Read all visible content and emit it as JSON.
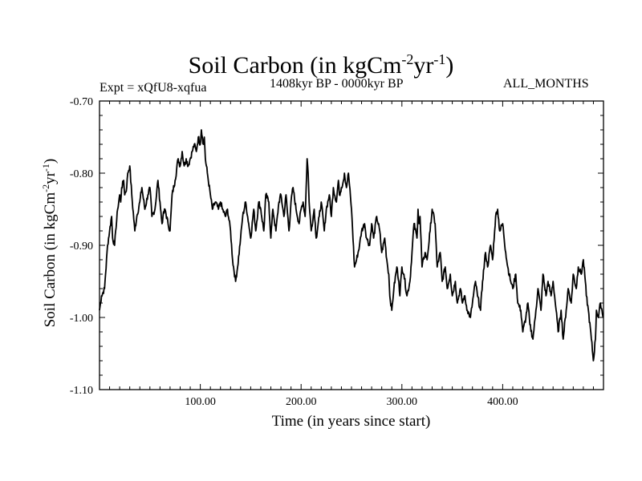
{
  "header": {
    "title_main": "Soil Carbon (in kgCm",
    "title_exp1": "-2",
    "title_mid": "yr",
    "title_exp2": "-1",
    "title_end": ")",
    "subtitle": "1408kyr BP - 0000kyr BP",
    "expt": "Expt = xQfU8-xqfua",
    "months": "ALL_MONTHS"
  },
  "chart_data": {
    "type": "line",
    "title": "Soil Carbon (in kgCm-2yr-1)",
    "xlabel": "Time (in years since start)",
    "ylabel": "Soil Carbon (in kgCm-2yr-1)",
    "xlim": [
      0,
      500
    ],
    "ylim": [
      -1.1,
      -0.7
    ],
    "xticks": [
      100,
      200,
      300,
      400
    ],
    "xtick_labels": [
      "100.00",
      "200.00",
      "300.00",
      "400.00"
    ],
    "yticks": [
      -1.1,
      -1.0,
      -0.9,
      -0.8,
      -0.7
    ],
    "ytick_labels": [
      "-1.10",
      "-1.00",
      "-0.90",
      "-0.80",
      "-0.70"
    ],
    "grid": false,
    "series": [
      {
        "name": "Soil Carbon",
        "x": [
          0,
          2,
          5,
          8,
          10,
          12,
          13,
          15,
          16,
          18,
          20,
          21,
          22,
          24,
          25,
          27,
          28,
          30,
          32,
          35,
          37,
          40,
          42,
          45,
          48,
          50,
          52,
          55,
          58,
          60,
          62,
          63,
          65,
          68,
          70,
          72,
          75,
          78,
          80,
          82,
          84,
          86,
          88,
          90,
          92,
          94,
          96,
          98,
          100,
          101,
          102,
          103,
          104,
          105,
          107,
          110,
          112,
          115,
          118,
          120,
          122,
          125,
          127,
          130,
          132,
          135,
          137,
          140,
          142,
          145,
          148,
          150,
          153,
          155,
          158,
          160,
          163,
          165,
          168,
          170,
          172,
          175,
          178,
          180,
          183,
          185,
          188,
          190,
          192,
          195,
          198,
          200,
          202,
          204,
          205,
          206,
          207,
          208,
          210,
          213,
          215,
          218,
          220,
          223,
          225,
          228,
          230,
          232,
          235,
          237,
          238,
          240,
          242,
          243,
          245,
          246,
          247,
          250,
          253,
          255,
          258,
          260,
          263,
          265,
          268,
          270,
          272,
          275,
          278,
          280,
          283,
          285,
          287,
          288,
          290,
          292,
          295,
          297,
          298,
          300,
          302,
          305,
          308,
          310,
          312,
          315,
          316,
          317,
          318,
          320,
          323,
          325,
          328,
          330,
          333,
          335,
          338,
          340,
          343,
          345,
          348,
          350,
          353,
          355,
          358,
          360,
          362,
          365,
          368,
          370,
          373,
          375,
          378,
          380,
          383,
          385,
          388,
          390,
          392,
          393,
          395,
          397,
          400,
          403,
          405,
          408,
          410,
          413,
          415,
          418,
          420,
          423,
          425,
          427,
          430,
          433,
          435,
          438,
          440,
          443,
          445,
          448,
          450,
          453,
          455,
          458,
          460,
          463,
          465,
          468,
          470,
          473,
          475,
          478,
          480,
          482,
          483,
          485,
          488,
          490,
          492,
          493,
          495,
          497,
          500
        ],
        "y": [
          -0.99,
          -0.97,
          -0.96,
          -0.9,
          -0.88,
          -0.86,
          -0.89,
          -0.9,
          -0.88,
          -0.85,
          -0.83,
          -0.84,
          -0.82,
          -0.81,
          -0.83,
          -0.82,
          -0.8,
          -0.79,
          -0.83,
          -0.88,
          -0.86,
          -0.84,
          -0.82,
          -0.85,
          -0.83,
          -0.82,
          -0.86,
          -0.85,
          -0.81,
          -0.84,
          -0.87,
          -0.86,
          -0.85,
          -0.87,
          -0.88,
          -0.83,
          -0.81,
          -0.78,
          -0.79,
          -0.77,
          -0.79,
          -0.78,
          -0.79,
          -0.78,
          -0.77,
          -0.76,
          -0.77,
          -0.75,
          -0.76,
          -0.74,
          -0.75,
          -0.76,
          -0.75,
          -0.78,
          -0.8,
          -0.83,
          -0.85,
          -0.84,
          -0.85,
          -0.84,
          -0.85,
          -0.86,
          -0.85,
          -0.88,
          -0.92,
          -0.95,
          -0.93,
          -0.89,
          -0.86,
          -0.84,
          -0.87,
          -0.89,
          -0.85,
          -0.88,
          -0.84,
          -0.85,
          -0.88,
          -0.83,
          -0.84,
          -0.89,
          -0.85,
          -0.88,
          -0.84,
          -0.83,
          -0.86,
          -0.83,
          -0.88,
          -0.84,
          -0.82,
          -0.85,
          -0.87,
          -0.85,
          -0.84,
          -0.86,
          -0.82,
          -0.78,
          -0.8,
          -0.84,
          -0.88,
          -0.85,
          -0.89,
          -0.86,
          -0.84,
          -0.88,
          -0.85,
          -0.83,
          -0.86,
          -0.82,
          -0.84,
          -0.81,
          -0.83,
          -0.82,
          -0.81,
          -0.8,
          -0.82,
          -0.81,
          -0.8,
          -0.85,
          -0.93,
          -0.92,
          -0.9,
          -0.88,
          -0.87,
          -0.89,
          -0.9,
          -0.87,
          -0.89,
          -0.86,
          -0.88,
          -0.91,
          -0.89,
          -0.92,
          -0.94,
          -0.97,
          -0.99,
          -0.96,
          -0.93,
          -0.95,
          -0.97,
          -0.93,
          -0.94,
          -0.97,
          -0.95,
          -0.91,
          -0.87,
          -0.89,
          -0.85,
          -0.87,
          -0.86,
          -0.93,
          -0.91,
          -0.92,
          -0.88,
          -0.85,
          -0.87,
          -0.93,
          -0.91,
          -0.95,
          -0.93,
          -0.96,
          -0.94,
          -0.97,
          -0.95,
          -0.98,
          -0.96,
          -0.98,
          -0.97,
          -0.99,
          -1.0,
          -0.98,
          -0.95,
          -0.97,
          -0.99,
          -0.95,
          -0.91,
          -0.93,
          -0.9,
          -0.92,
          -0.88,
          -0.86,
          -0.85,
          -0.88,
          -0.87,
          -0.91,
          -0.93,
          -0.95,
          -0.96,
          -0.94,
          -0.98,
          -0.99,
          -1.02,
          -1.0,
          -0.98,
          -1.01,
          -1.03,
          -0.99,
          -0.96,
          -0.99,
          -0.94,
          -0.97,
          -0.95,
          -0.97,
          -0.95,
          -0.99,
          -1.02,
          -0.99,
          -1.03,
          -0.99,
          -0.96,
          -0.98,
          -0.94,
          -0.96,
          -0.93,
          -0.94,
          -0.92,
          -0.95,
          -0.97,
          -0.99,
          -1.03,
          -1.06,
          -1.03,
          -0.99,
          -1.0,
          -0.98,
          -1.0
        ]
      }
    ]
  }
}
